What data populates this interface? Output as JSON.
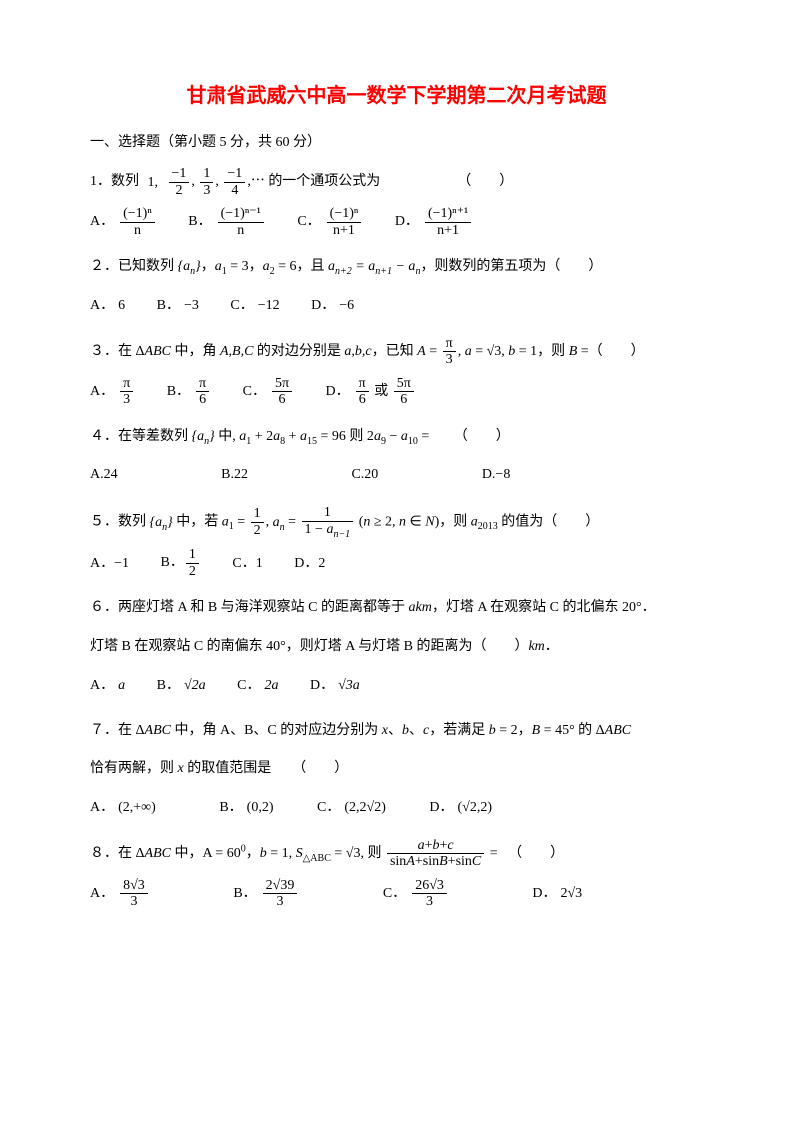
{
  "title": "甘肃省武威六中高一数学下学期第二次月考试题",
  "title_color": "#ff0000",
  "section_header": "一、选择题（第小题 5 分，共 60 分）",
  "q1": {
    "prefix": "1．数列",
    "sequence": "1, −1/2, 1/3, −1/4, ⋯",
    "suffix": "的一个通项公式为　　　　　　（　　）",
    "optA_num": "(−1)ⁿ",
    "optA_den": "n",
    "optB_num": "(−1)ⁿ⁻¹",
    "optB_den": "n",
    "optC_num": "(−1)ⁿ",
    "optC_den": "n+1",
    "optD_num": "(−1)ⁿ⁺¹",
    "optD_den": "n+1"
  },
  "q2": {
    "text": "２．已知数列 {aₙ}，a₁ = 3，a₂ = 6，且 aₙ₊₂ = aₙ₊₁ − aₙ，则数列的第五项为（　　）",
    "optA": "6",
    "optB": "−3",
    "optC": "−12",
    "optD": "−6"
  },
  "q3": {
    "text": "３．在 ΔABC 中，角 A,B,C 的对边分别是 a,b,c，已知 A = π/3, a = √3, b = 1，则 B =（　　）",
    "optA": "π/3",
    "optB": "π/6",
    "optC": "5π/6",
    "optD": "π/6 或 5π/6"
  },
  "q4": {
    "text": "４．在等差数列 {aₙ} 中, a₁ + 2a₈ + a₁₅ = 96 则 2a₉ − a₁₀ = 　　（　　）",
    "optA": "A.24",
    "optB": "B.22",
    "optC": "C.20",
    "optD": "D.−8"
  },
  "q5": {
    "text": "５．数列 {aₙ} 中，若 a₁ = 1/2, aₙ = 1/(1−aₙ₋₁) (n ≥ 2, n ∈ N)，则 a₂₀₁₃ 的值为（　　）",
    "optA": "A．−1",
    "optB": "B．1/2",
    "optC": "C．1",
    "optD": "D．2"
  },
  "q6": {
    "line1": "６．两座灯塔 A 和 B 与海洋观察站 C 的距离都等于 akm，灯塔 A 在观察站 C 的北偏东 20°．",
    "line2": "灯塔 B 在观察站 C 的南偏东 40°，则灯塔 A 与灯塔 B 的距离为（　　）km．",
    "optA": "a",
    "optB": "√2a",
    "optC": "2a",
    "optD": "√3a"
  },
  "q7": {
    "line1": "７．在 ΔABC 中，角 A、B、C 的对应边分别为 x、b、c，若满足 b = 2，B = 45° 的 ΔABC",
    "line2": "恰有两解，则 x 的取值范围是　　（　　）",
    "optA": "(2,+∞)",
    "optB": "(0,2)",
    "optC": "(2,2√2)",
    "optD": "(√2,2)"
  },
  "q8": {
    "text": "８．在 ΔABC 中，A = 60°，b = 1, S△ABC = √3, 则 (a+b+c)/(sinA+sinB+sinC) = 　（　　）",
    "optA_num": "8√3",
    "optA_den": "3",
    "optB_num": "2√39",
    "optB_den": "3",
    "optC_num": "26√3",
    "optC_den": "3",
    "optD": "2√3"
  },
  "labels": {
    "A": "A．",
    "B": "B．",
    "C": "C．",
    "D": "D．"
  }
}
